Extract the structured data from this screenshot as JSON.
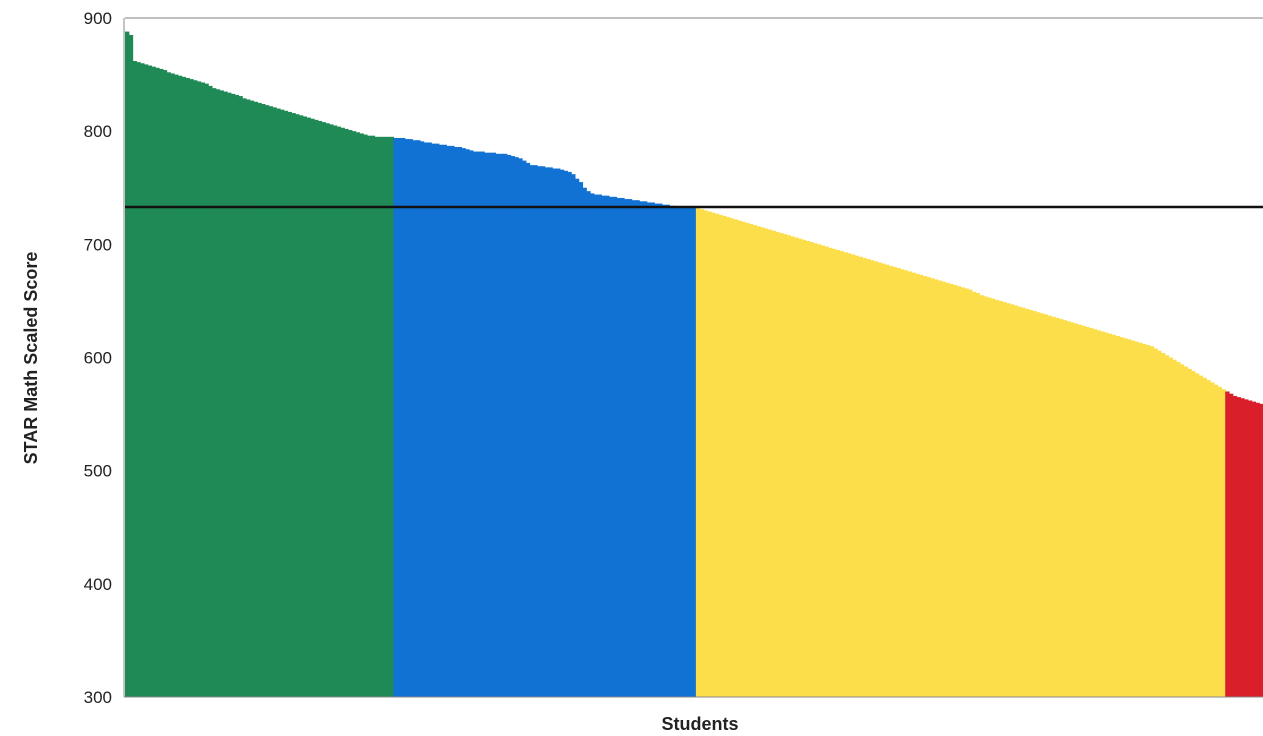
{
  "chart_data": {
    "type": "bar",
    "title": "",
    "xlabel": "Students",
    "ylabel": "STAR Math Scaled Score",
    "ylim": [
      300,
      900
    ],
    "y_ticks": [
      300,
      400,
      500,
      600,
      700,
      800,
      900
    ],
    "grid": false,
    "legend": "none",
    "benchmark_line": 733,
    "series": [
      {
        "color": "#1f8a56",
        "values": [
          888,
          885,
          862,
          861,
          860,
          859,
          858,
          857,
          856,
          855,
          854,
          852,
          851,
          850,
          849,
          848,
          847,
          846,
          845,
          844,
          843,
          842,
          840,
          838,
          837,
          836,
          835,
          834,
          833,
          832,
          831,
          829,
          828,
          827,
          826,
          825,
          824,
          823,
          822,
          821,
          820,
          819,
          818,
          817,
          816,
          815,
          814,
          813,
          812,
          811,
          810,
          809,
          808,
          807,
          806,
          805,
          804,
          803,
          802,
          801,
          800,
          799,
          798,
          797,
          796,
          796,
          795,
          795,
          795,
          795,
          795
        ]
      },
      {
        "color": "#1172d4",
        "values": [
          794,
          794,
          794,
          793,
          793,
          792,
          792,
          791,
          790,
          790,
          789,
          789,
          788,
          788,
          787,
          787,
          786,
          786,
          785,
          784,
          783,
          782,
          782,
          782,
          781,
          781,
          781,
          780,
          780,
          780,
          779,
          778,
          777,
          776,
          774,
          772,
          770,
          770,
          769,
          769,
          768,
          768,
          767,
          767,
          766,
          765,
          764,
          762,
          758,
          755,
          750,
          747,
          745,
          744,
          744,
          743,
          743,
          742,
          742,
          741,
          741,
          740,
          740,
          739,
          739,
          738,
          738,
          737,
          737,
          736,
          736,
          735,
          735,
          734,
          734,
          733,
          733,
          733,
          733,
          733
        ]
      },
      {
        "color": "#fbde4a",
        "values": [
          732,
          731,
          730,
          729,
          728,
          727,
          726,
          725,
          724,
          723,
          722,
          721,
          720,
          719,
          718,
          717,
          716,
          715,
          714,
          713,
          712,
          711,
          710,
          709,
          708,
          707,
          706,
          705,
          704,
          703,
          702,
          701,
          700,
          699,
          698,
          697,
          696,
          695,
          694,
          693,
          692,
          691,
          690,
          689,
          688,
          687,
          686,
          685,
          684,
          683,
          682,
          681,
          680,
          679,
          678,
          677,
          676,
          675,
          674,
          673,
          672,
          671,
          670,
          669,
          668,
          667,
          666,
          665,
          664,
          663,
          662,
          661,
          660,
          658,
          657,
          655,
          654,
          653,
          652,
          651,
          650,
          649,
          648,
          647,
          646,
          645,
          644,
          643,
          642,
          641,
          640,
          639,
          638,
          637,
          636,
          635,
          634,
          633,
          632,
          631,
          630,
          629,
          628,
          627,
          626,
          625,
          624,
          623,
          622,
          621,
          620,
          619,
          618,
          617,
          616,
          615,
          614,
          613,
          612,
          611,
          610,
          608,
          606,
          604,
          602,
          600,
          598,
          596,
          594,
          592,
          590,
          588,
          586,
          584,
          582,
          580,
          578,
          576,
          574,
          572
        ]
      },
      {
        "color": "#d91f2a",
        "values": [
          570,
          568,
          566,
          565,
          564,
          563,
          562,
          561,
          560,
          559
        ]
      }
    ]
  }
}
